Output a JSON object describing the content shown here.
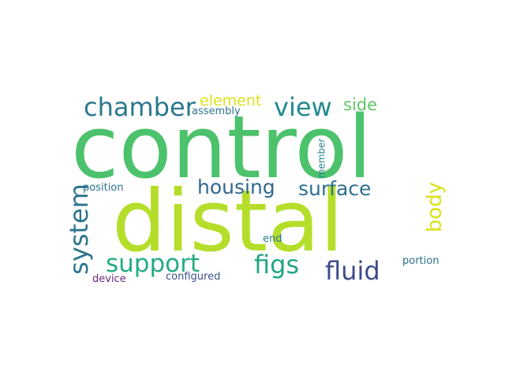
{
  "words": [
    {
      "key": "control",
      "text": "control",
      "color": "#4cc26c",
      "vertical": false
    },
    {
      "key": "distal",
      "text": "distal",
      "color": "#b5de2b",
      "vertical": false
    },
    {
      "key": "chamber",
      "text": "chamber",
      "color": "#2a788e",
      "vertical": false
    },
    {
      "key": "view",
      "text": "view",
      "color": "#238a8d",
      "vertical": false
    },
    {
      "key": "element",
      "text": "element",
      "color": "#dde318",
      "vertical": false
    },
    {
      "key": "side",
      "text": "side",
      "color": "#5ec962",
      "vertical": false
    },
    {
      "key": "assembly",
      "text": "assembly",
      "color": "#2c728e",
      "vertical": false
    },
    {
      "key": "housing",
      "text": "housing",
      "color": "#31688e",
      "vertical": false
    },
    {
      "key": "surface",
      "text": "surface",
      "color": "#2d708e",
      "vertical": false
    },
    {
      "key": "system",
      "text": "system",
      "color": "#2b748e",
      "vertical": true
    },
    {
      "key": "body",
      "text": "body",
      "color": "#d8e219",
      "vertical": true
    },
    {
      "key": "member",
      "text": "member",
      "color": "#26818e",
      "vertical": true
    },
    {
      "key": "position",
      "text": "position",
      "color": "#2c738e",
      "vertical": false
    },
    {
      "key": "support",
      "text": "support",
      "color": "#25ab82",
      "vertical": false
    },
    {
      "key": "figs",
      "text": "figs",
      "color": "#21a685",
      "vertical": false
    },
    {
      "key": "fluid",
      "text": "fluid",
      "color": "#3e4a89",
      "vertical": false
    },
    {
      "key": "end",
      "text": "end",
      "color": "#2a768e",
      "vertical": false
    },
    {
      "key": "portion",
      "text": "portion",
      "color": "#2d708e",
      "vertical": false
    },
    {
      "key": "device",
      "text": "device",
      "color": "#67287e",
      "vertical": false
    },
    {
      "key": "configured",
      "text": "configured",
      "color": "#3b528b",
      "vertical": false
    }
  ]
}
